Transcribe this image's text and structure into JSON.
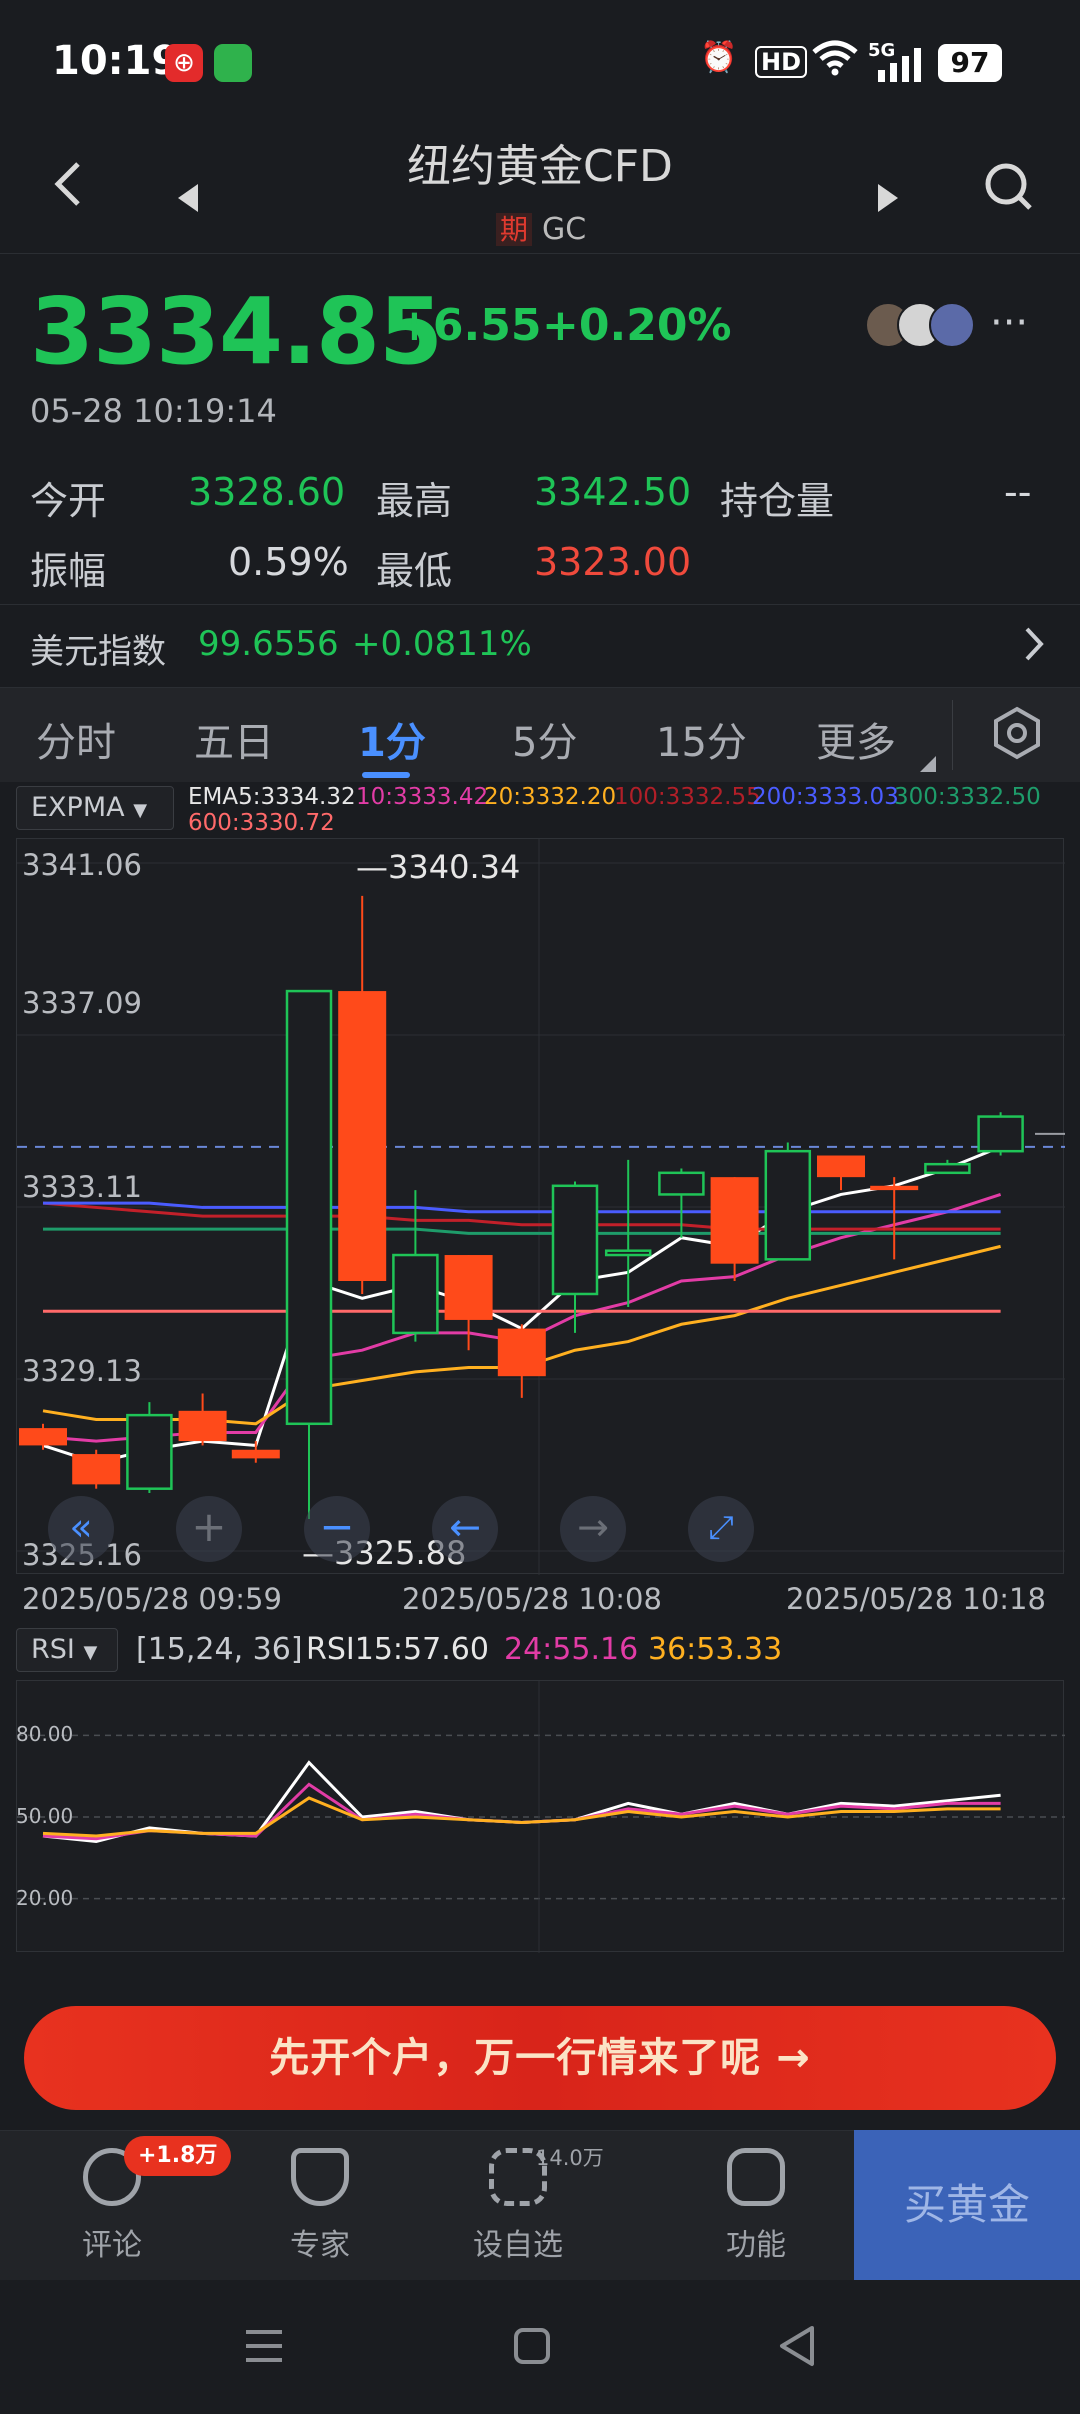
{
  "status_bar": {
    "time": "10:19",
    "app1_icon": "citic-app-icon",
    "app2_icon": "message-app-icon",
    "hd": "HD",
    "network": "5G",
    "battery": "97"
  },
  "header": {
    "title": "纽约黄金CFD",
    "tag": "期",
    "code": "GC"
  },
  "quote": {
    "price": "3334.85",
    "change": "+6.55",
    "change_pct": "+0.20%",
    "timestamp": "05-28 10:19:14"
  },
  "stats": {
    "open_label": "今开",
    "open": "3328.60",
    "high_label": "最高",
    "high": "3342.50",
    "oi_label": "持仓量",
    "oi": "--",
    "amp_label": "振幅",
    "amp": "0.59%",
    "low_label": "最低",
    "low": "3323.00"
  },
  "dxy": {
    "label": "美元指数",
    "value": "99.6556",
    "change": "+0.0811%"
  },
  "tabs": [
    {
      "label": "分时"
    },
    {
      "label": "五日"
    },
    {
      "label": "1分",
      "active": true
    },
    {
      "label": "5分"
    },
    {
      "label": "15分"
    },
    {
      "label": "更多"
    }
  ],
  "indicator": {
    "name": "EXPMA",
    "ema5": "EMA5:3334.32",
    "ema10": "10:3333.42",
    "ema20": "20:3332.20",
    "ema100": "100:3332.55",
    "ema200": "200:3333.03",
    "ema300": "300:3332.50",
    "ema600": "600:3330.72"
  },
  "chart_data": {
    "type": "candlestick",
    "y_ticks": [
      "3341.06",
      "3337.09",
      "3333.11",
      "3329.13",
      "3325.16"
    ],
    "ylim": [
      3325.16,
      3341.06
    ],
    "x_labels": [
      "2025/05/28 09:59",
      "2025/05/28 10:08",
      "2025/05/28 10:18"
    ],
    "max_label": "3340.34",
    "min_label": "3325.88",
    "current_price_line": 3334.5,
    "candles": [
      {
        "o": 3328.0,
        "c": 3327.6,
        "h": 3328.1,
        "l": 3327.5
      },
      {
        "o": 3327.4,
        "c": 3326.7,
        "h": 3327.5,
        "l": 3326.6
      },
      {
        "o": 3326.6,
        "c": 3328.3,
        "h": 3328.6,
        "l": 3326.5
      },
      {
        "o": 3328.4,
        "c": 3327.7,
        "h": 3328.8,
        "l": 3327.6
      },
      {
        "o": 3327.5,
        "c": 3327.3,
        "h": 3327.7,
        "l": 3327.2
      },
      {
        "o": 3328.1,
        "c": 3338.1,
        "h": 3338.1,
        "l": 3325.9
      },
      {
        "o": 3338.1,
        "c": 3331.4,
        "h": 3340.3,
        "l": 3331.1
      },
      {
        "o": 3330.2,
        "c": 3332.0,
        "h": 3333.5,
        "l": 3330.0
      },
      {
        "o": 3332.0,
        "c": 3330.5,
        "h": 3332.0,
        "l": 3329.8
      },
      {
        "o": 3330.3,
        "c": 3329.2,
        "h": 3330.4,
        "l": 3328.7
      },
      {
        "o": 3331.1,
        "c": 3333.6,
        "h": 3333.7,
        "l": 3330.2
      },
      {
        "o": 3332.0,
        "c": 3332.1,
        "h": 3334.2,
        "l": 3330.8
      },
      {
        "o": 3333.4,
        "c": 3333.9,
        "h": 3334.0,
        "l": 3332.4
      },
      {
        "o": 3333.8,
        "c": 3331.8,
        "h": 3333.8,
        "l": 3331.4
      },
      {
        "o": 3331.9,
        "c": 3334.4,
        "h": 3334.6,
        "l": 3331.9
      },
      {
        "o": 3334.3,
        "c": 3333.8,
        "h": 3334.3,
        "l": 3333.5
      },
      {
        "o": 3333.6,
        "c": 3333.5,
        "h": 3333.8,
        "l": 3331.9
      },
      {
        "o": 3333.9,
        "c": 3334.1,
        "h": 3334.2,
        "l": 3333.9
      },
      {
        "o": 3334.4,
        "c": 3335.2,
        "h": 3335.3,
        "l": 3334.3
      }
    ],
    "series": [
      {
        "name": "EMA5",
        "color": "#ffffff",
        "values": [
          3327.6,
          3327.2,
          3327.5,
          3327.7,
          3327.6,
          3331.4,
          3331.0,
          3331.3,
          3330.9,
          3330.3,
          3331.4,
          3331.6,
          3332.4,
          3332.2,
          3333.0,
          3333.4,
          3333.6,
          3334.0,
          3334.5
        ]
      },
      {
        "name": "10",
        "color": "#e23ca6",
        "values": [
          3327.8,
          3327.7,
          3327.8,
          3327.9,
          3327.9,
          3329.6,
          3329.8,
          3330.2,
          3330.2,
          3330.0,
          3330.6,
          3330.9,
          3331.4,
          3331.5,
          3332.0,
          3332.4,
          3332.7,
          3333.0,
          3333.4
        ]
      },
      {
        "name": "20",
        "color": "#ffb020",
        "values": [
          3328.4,
          3328.2,
          3328.2,
          3328.2,
          3328.1,
          3328.9,
          3329.1,
          3329.3,
          3329.4,
          3329.4,
          3329.8,
          3330.0,
          3330.4,
          3330.6,
          3331.0,
          3331.3,
          3331.6,
          3331.9,
          3332.2
        ]
      },
      {
        "name": "100",
        "color": "#c2202a",
        "values": [
          3333.2,
          3333.1,
          3333.0,
          3332.9,
          3332.9,
          3332.9,
          3332.9,
          3332.8,
          3332.8,
          3332.7,
          3332.7,
          3332.7,
          3332.7,
          3332.6,
          3332.6,
          3332.6,
          3332.6,
          3332.6,
          3332.6
        ]
      },
      {
        "name": "200",
        "color": "#4a5cff",
        "values": [
          3333.2,
          3333.2,
          3333.2,
          3333.1,
          3333.1,
          3333.1,
          3333.1,
          3333.1,
          3333.0,
          3333.0,
          3333.0,
          3333.0,
          3333.0,
          3333.0,
          3333.0,
          3333.0,
          3333.0,
          3333.0,
          3333.0
        ]
      },
      {
        "name": "300",
        "color": "#1e9c6a",
        "values": [
          3332.6,
          3332.6,
          3332.6,
          3332.6,
          3332.6,
          3332.6,
          3332.6,
          3332.6,
          3332.5,
          3332.5,
          3332.5,
          3332.5,
          3332.5,
          3332.5,
          3332.5,
          3332.5,
          3332.5,
          3332.5,
          3332.5
        ]
      },
      {
        "name": "600",
        "color": "#ff6a6a",
        "values": [
          3330.7,
          3330.7,
          3330.7,
          3330.7,
          3330.7,
          3330.7,
          3330.7,
          3330.7,
          3330.7,
          3330.7,
          3330.7,
          3330.7,
          3330.7,
          3330.7,
          3330.7,
          3330.7,
          3330.7,
          3330.7,
          3330.7
        ]
      }
    ],
    "grid": true
  },
  "rsi": {
    "name": "RSI",
    "params": "[15,24, 36]",
    "rsi15": "RSI15:57.60",
    "rsi24": "24:55.16",
    "rsi36": "36:53.33",
    "ticks": [
      "80.00",
      "50.00",
      "20.00"
    ],
    "ylim": [
      0,
      100
    ],
    "series": [
      {
        "name": "RSI15",
        "color": "#ffffff",
        "values": [
          43,
          41,
          46,
          44,
          43,
          70,
          50,
          52,
          49,
          48,
          49,
          55,
          51,
          55,
          51,
          55,
          54,
          56,
          58
        ]
      },
      {
        "name": "24",
        "color": "#e23ca6",
        "values": [
          43,
          42,
          45,
          44,
          43,
          62,
          49,
          51,
          49,
          48,
          49,
          53,
          51,
          54,
          51,
          54,
          53,
          55,
          55
        ]
      },
      {
        "name": "36",
        "color": "#ffb020",
        "values": [
          44,
          43,
          45,
          44,
          44,
          57,
          49,
          50,
          49,
          48,
          49,
          52,
          50,
          52,
          50,
          52,
          52,
          53,
          53
        ]
      }
    ]
  },
  "cta": {
    "label": "先开个户，万一行情来了呢 →"
  },
  "bottom_nav": {
    "comment": "评论",
    "comment_badge": "+1.8万",
    "expert": "专家",
    "watch": "设自选",
    "watch_count": "14.0万",
    "func": "功能",
    "buy": "买黄金"
  },
  "colors": {
    "up": "#1fc457",
    "down": "#ff4a1a",
    "accent": "#4a90ff"
  }
}
